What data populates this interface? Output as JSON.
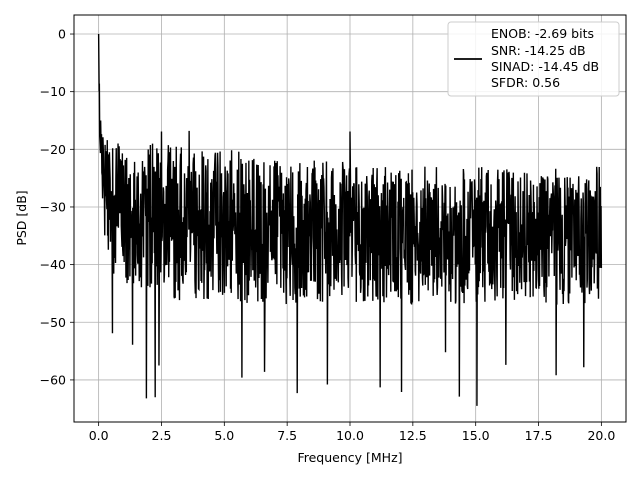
{
  "chart_data": {
    "type": "line",
    "title": "",
    "xlabel": "Frequency [MHz]",
    "ylabel": "PSD [dB]",
    "xlim": [
      -0.98,
      20.98
    ],
    "ylim": [
      -67.3,
      3.3
    ],
    "xticks": [
      0.0,
      2.5,
      5.0,
      7.5,
      10.0,
      12.5,
      15.0,
      17.5,
      20.0
    ],
    "xtick_labels": [
      "0.0",
      "2.5",
      "5.0",
      "7.5",
      "10.0",
      "12.5",
      "15.0",
      "17.5",
      "20.0"
    ],
    "yticks": [
      0,
      -10,
      -20,
      -30,
      -40,
      -50,
      -60
    ],
    "ytick_labels": [
      "0",
      "−10",
      "−20",
      "−30",
      "−40",
      "−50",
      "−60"
    ],
    "grid": true,
    "legend": {
      "placement": "top-right",
      "lines": [
        "ENOB: -2.69 bits",
        "SNR: -14.25 dB",
        "SINAD: -14.45 dB",
        "SFDR: 0.56"
      ]
    },
    "series": [
      {
        "color": "#000000",
        "x_start": 0,
        "x_end": 20,
        "n_points": 1400,
        "envelope": {
          "description_free": true,
          "upper": [
            [
              0,
              0
            ],
            [
              0.05,
              -15
            ],
            [
              0.3,
              -18
            ],
            [
              2.5,
              -19
            ],
            [
              5,
              -20
            ],
            [
              7.5,
              -21
            ],
            [
              10,
              -22
            ],
            [
              12.5,
              -23
            ],
            [
              15,
              -23
            ],
            [
              17.5,
              -23
            ],
            [
              20,
              -23
            ]
          ],
          "lower": [
            [
              0,
              -15
            ],
            [
              0.2,
              -35
            ],
            [
              0.5,
              -42
            ],
            [
              2.5,
              -46
            ],
            [
              5,
              -47
            ],
            [
              10,
              -47
            ],
            [
              15,
              -47
            ],
            [
              20,
              -47
            ]
          ]
        },
        "spikes": [
          {
            "x": 0.0,
            "y": 0.0
          },
          {
            "x": 0.02,
            "y": -10
          },
          {
            "x": 0.08,
            "y": -15
          },
          {
            "x": 1.9,
            "y": -63.2
          },
          {
            "x": 2.25,
            "y": -63.0
          },
          {
            "x": 2.4,
            "y": -57.5
          },
          {
            "x": 1.35,
            "y": -53.9
          },
          {
            "x": 0.55,
            "y": -51.9
          },
          {
            "x": 5.7,
            "y": -59.6
          },
          {
            "x": 6.6,
            "y": -58.6
          },
          {
            "x": 7.9,
            "y": -62.3
          },
          {
            "x": 9.1,
            "y": -60.8
          },
          {
            "x": 11.2,
            "y": -61.3
          },
          {
            "x": 12.05,
            "y": -62.1
          },
          {
            "x": 14.35,
            "y": -62.9
          },
          {
            "x": 15.05,
            "y": -64.5
          },
          {
            "x": 10.0,
            "y": -16.9
          },
          {
            "x": 2.5,
            "y": -16.9
          },
          {
            "x": 3.6,
            "y": -16.8
          },
          {
            "x": 18.2,
            "y": -59.2
          },
          {
            "x": 19.3,
            "y": -57.8
          },
          {
            "x": 16.2,
            "y": -57.4
          },
          {
            "x": 13.8,
            "y": -55.2
          }
        ]
      }
    ]
  }
}
